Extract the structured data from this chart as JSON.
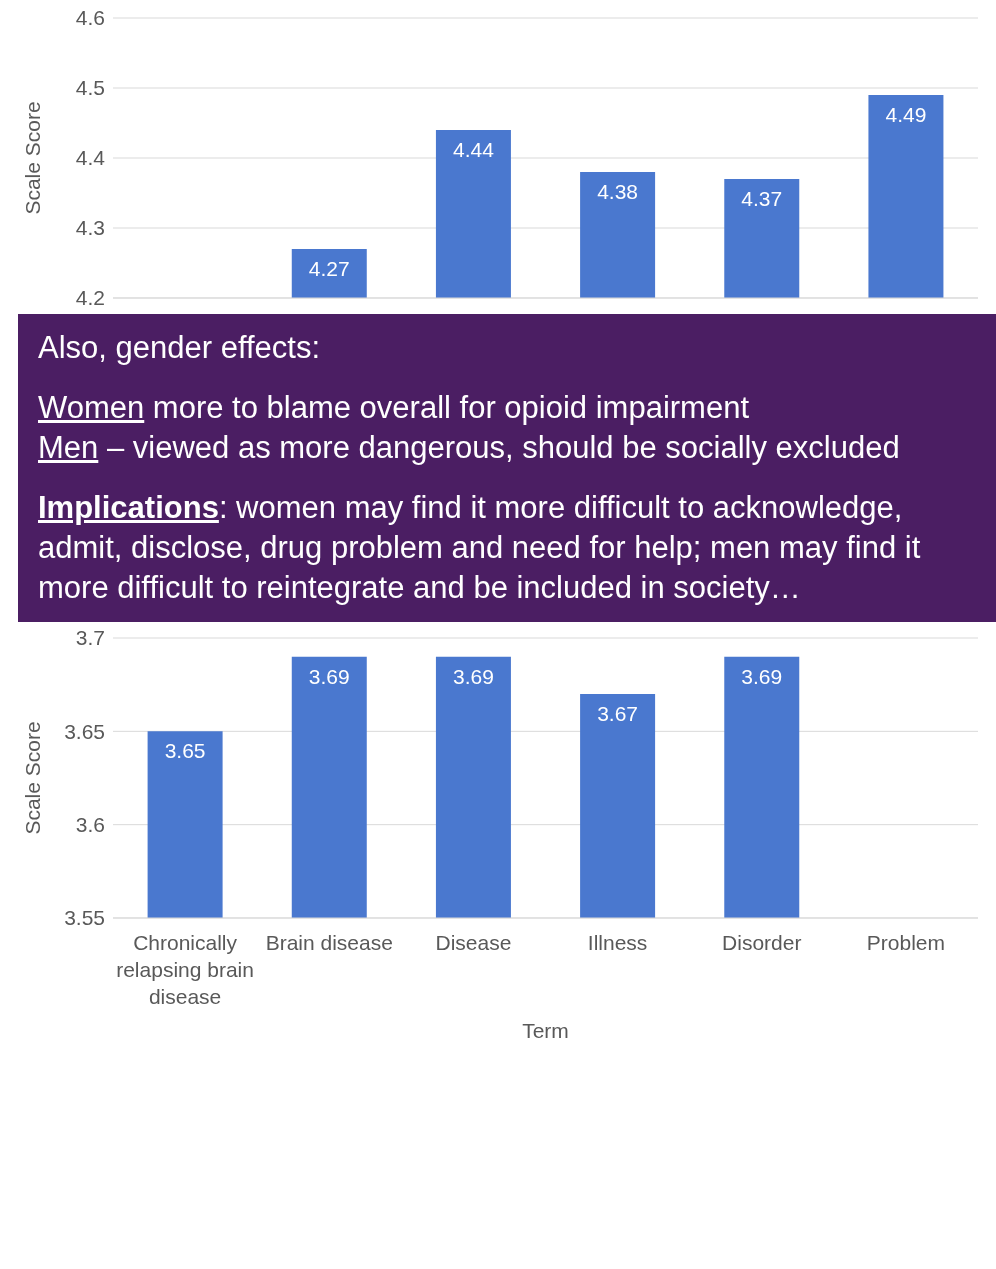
{
  "chart_data": [
    {
      "type": "bar",
      "ylabel": "Scale Score",
      "categories": [
        null,
        null,
        null,
        null,
        null,
        null
      ],
      "values": [
        null,
        4.27,
        4.44,
        4.38,
        4.37,
        4.49
      ],
      "color": "#4a78cf",
      "ylim": [
        4.2,
        4.6
      ],
      "yticks": [
        4.2,
        4.3,
        4.4,
        4.5,
        4.6
      ],
      "grid": "y",
      "data_labels": true,
      "tick_labels": "y"
    },
    {
      "type": "other",
      "title": "Also, gender effects:",
      "annotations": [
        "Women more to blame overall for opioid impairment",
        "Men – viewed as more dangerous, should be socially excluded",
        "Implications: women may find it more difficult to acknowledge, admit, disclose, drug problem and need for help; men may find it more difficult to reintegrate and be included in society…"
      ],
      "color": "#4b1e63"
    },
    {
      "type": "bar",
      "ylabel": "Scale Score",
      "xlabel": "Term",
      "categories": [
        "Chronically relapsing brain disease",
        "Brain disease",
        "Disease",
        "Illness",
        "Disorder",
        "Problem"
      ],
      "values": [
        3.65,
        3.69,
        3.69,
        3.67,
        3.69,
        null
      ],
      "color": "#4a78cf",
      "ylim": [
        3.55,
        3.7
      ],
      "yticks": [
        3.55,
        3.6,
        3.65,
        3.7
      ],
      "grid": "y",
      "data_labels": true
    }
  ]
}
